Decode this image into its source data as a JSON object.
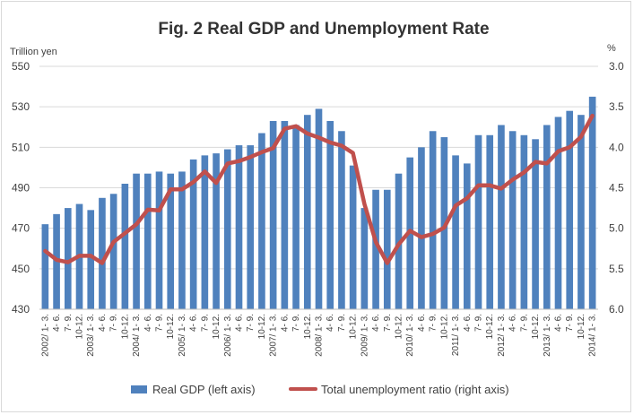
{
  "chart_data": {
    "type": "bar",
    "title": "Fig. 2 Real GDP and Unemployment Rate",
    "ylabel_left": "Trillion yen",
    "ylabel_right": "%",
    "left_ticks": [
      "550",
      "530",
      "510",
      "490",
      "470",
      "450",
      "430"
    ],
    "right_ticks": [
      "3.0",
      "3.5",
      "4.0",
      "4.5",
      "5.0",
      "5.5",
      "6.0"
    ],
    "ylim_left": [
      430,
      550
    ],
    "ylim_right": [
      6.0,
      3.0
    ],
    "right_axis_inverted": true,
    "grid": true,
    "legend_position": "bottom",
    "categories": [
      "2002/ 1- 3.",
      "4- 6.",
      "7- 9.",
      "10-12.",
      "2003/ 1- 3.",
      "4- 6.",
      "7- 9.",
      "10-12.",
      "2004/ 1- 3.",
      "4- 6.",
      "7- 9.",
      "10-12.",
      "2005/ 1- 3.",
      "4- 6.",
      "7- 9.",
      "10-12.",
      "2006/ 1- 3.",
      "4- 6.",
      "7- 9.",
      "10-12.",
      "2007/ 1- 3.",
      "4- 6.",
      "7- 9.",
      "10-12.",
      "2008/ 1- 3.",
      "4- 6.",
      "7- 9.",
      "10-12.",
      "2009/ 1- 3.",
      "4- 6.",
      "7- 9.",
      "10-12.",
      "2010/ 1- 3.",
      "4- 6.",
      "7- 9.",
      "10-12.",
      "2011/ 1- 3.",
      "4- 6.",
      "7- 9.",
      "10-12.",
      "2012/ 1- 3.",
      "4- 6.",
      "7- 9.",
      "10-12.",
      "2013/ 1- 3.",
      "4- 6.",
      "7- 9.",
      "10-12.",
      "2014/ 1- 3."
    ],
    "series": [
      {
        "name": "Real GDP (left axis)",
        "type": "bar",
        "axis": "left",
        "color": "#4f81bd",
        "values": [
          472,
          477,
          480,
          482,
          479,
          485,
          487,
          492,
          497,
          497,
          498,
          497,
          498,
          504,
          506,
          507,
          509,
          511,
          511,
          517,
          523,
          523,
          521,
          526,
          529,
          523,
          518,
          501,
          480,
          489,
          489,
          497,
          505,
          510,
          518,
          515,
          506,
          502,
          516,
          516,
          521,
          518,
          516,
          514,
          521,
          525,
          528,
          526,
          535
        ]
      },
      {
        "name": "Total unemployment ratio (right axis)",
        "type": "line",
        "axis": "right",
        "color": "#c0504d",
        "values": [
          5.28,
          5.39,
          5.42,
          5.34,
          5.34,
          5.43,
          5.17,
          5.06,
          4.95,
          4.77,
          4.78,
          4.52,
          4.52,
          4.43,
          4.3,
          4.44,
          4.2,
          4.17,
          4.12,
          4.06,
          4.01,
          3.77,
          3.74,
          3.83,
          3.88,
          3.94,
          3.98,
          4.07,
          4.7,
          5.17,
          5.43,
          5.2,
          5.03,
          5.11,
          5.07,
          4.99,
          4.72,
          4.63,
          4.47,
          4.47,
          4.51,
          4.4,
          4.31,
          4.18,
          4.2,
          4.05,
          4.0,
          3.87,
          3.61
        ]
      }
    ]
  }
}
